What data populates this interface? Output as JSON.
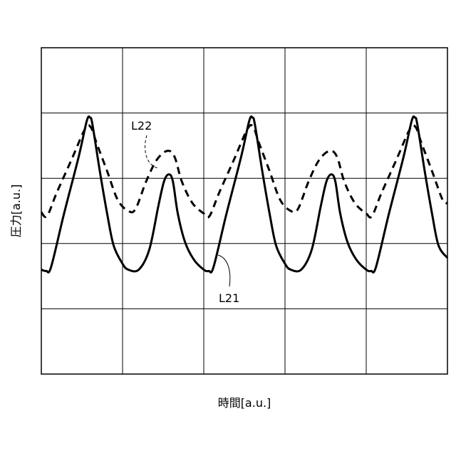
{
  "chart_data": {
    "type": "line",
    "title": "",
    "xlabel": "時間[a.u.]",
    "ylabel": "圧力[a.u.]",
    "xlim": [
      0,
      5
    ],
    "ylim": [
      0,
      5
    ],
    "grid": true,
    "series": [
      {
        "name": "L21",
        "style": "solid",
        "color": "#000000",
        "x": [
          0,
          0.06,
          0.12,
          0.28,
          0.46,
          0.56,
          0.6,
          0.63,
          0.72,
          0.81,
          0.89,
          1.0,
          1.07,
          1.2,
          1.33,
          1.44,
          1.51,
          1.57,
          1.62,
          1.68,
          1.77,
          1.88,
          2.0,
          2.06,
          2.12,
          2.28,
          2.46,
          2.56,
          2.6,
          2.63,
          2.72,
          2.81,
          2.89,
          3.0,
          3.07,
          3.2,
          3.33,
          3.44,
          3.51,
          3.57,
          3.62,
          3.68,
          3.77,
          3.88,
          4.0,
          4.06,
          4.12,
          4.28,
          4.46,
          4.56,
          4.6,
          4.63,
          4.72,
          4.81,
          4.89,
          5.0
        ],
        "y": [
          1.6,
          1.58,
          1.64,
          2.46,
          3.33,
          3.88,
          3.93,
          3.82,
          3.11,
          2.46,
          1.97,
          1.69,
          1.6,
          1.6,
          1.91,
          2.57,
          2.95,
          3.06,
          2.95,
          2.46,
          2.02,
          1.75,
          1.6,
          1.58,
          1.64,
          2.46,
          3.33,
          3.88,
          3.93,
          3.82,
          3.11,
          2.46,
          1.97,
          1.69,
          1.6,
          1.6,
          1.91,
          2.57,
          2.95,
          3.06,
          2.95,
          2.46,
          2.02,
          1.75,
          1.6,
          1.58,
          1.64,
          2.46,
          3.33,
          3.88,
          3.93,
          3.82,
          3.11,
          2.46,
          1.97,
          1.78
        ]
      },
      {
        "name": "L22",
        "style": "dashed",
        "color": "#000000",
        "x": [
          0,
          0.07,
          0.19,
          0.37,
          0.54,
          0.61,
          0.68,
          0.81,
          0.94,
          1.07,
          1.16,
          1.29,
          1.42,
          1.55,
          1.64,
          1.73,
          1.86,
          2.0,
          2.07,
          2.19,
          2.37,
          2.54,
          2.61,
          2.68,
          2.81,
          2.94,
          3.07,
          3.16,
          3.29,
          3.42,
          3.55,
          3.64,
          3.73,
          3.86,
          4.0,
          4.07,
          4.19,
          4.37,
          4.54,
          4.61,
          4.68,
          4.81,
          4.94,
          5.0
        ],
        "y": [
          2.48,
          2.42,
          2.78,
          3.28,
          3.76,
          3.78,
          3.54,
          3.11,
          2.67,
          2.5,
          2.53,
          2.95,
          3.28,
          3.42,
          3.33,
          2.95,
          2.62,
          2.46,
          2.42,
          2.78,
          3.28,
          3.76,
          3.78,
          3.54,
          3.11,
          2.67,
          2.5,
          2.53,
          2.95,
          3.28,
          3.42,
          3.33,
          2.95,
          2.62,
          2.46,
          2.42,
          2.78,
          3.28,
          3.76,
          3.78,
          3.54,
          3.11,
          2.67,
          2.62
        ]
      }
    ]
  }
}
